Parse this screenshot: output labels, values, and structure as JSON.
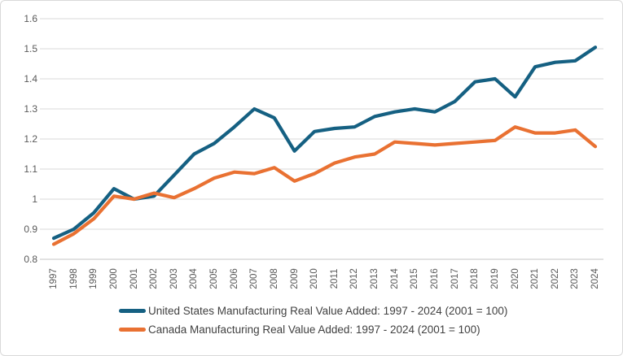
{
  "colors": {
    "background": "#FFFFFF",
    "frame_border": "#D9D9D9",
    "gridline": "#D9D9D9",
    "axis_line": "#C6C6C6",
    "tick_text": "#595959",
    "legend_text": "#404040",
    "us_line": "#156082",
    "canada_line": "#E97132"
  },
  "chart_data": {
    "type": "line",
    "categories": [
      "1997",
      "1998",
      "1999",
      "2000",
      "2001",
      "2002",
      "2003",
      "2004",
      "2005",
      "2006",
      "2007",
      "2008",
      "2009",
      "2010",
      "2011",
      "2012",
      "2013",
      "2014",
      "2015",
      "2016",
      "2017",
      "2018",
      "2019",
      "2020",
      "2021",
      "2022",
      "2023",
      "2024"
    ],
    "series": [
      {
        "name": "United States Manufacturing Real Value Added: 1997 - 2024 (2001 = 100)",
        "color": "#156082",
        "values": [
          0.87,
          0.9,
          0.955,
          1.035,
          1.0,
          1.01,
          1.08,
          1.15,
          1.185,
          1.24,
          1.3,
          1.27,
          1.16,
          1.225,
          1.235,
          1.24,
          1.275,
          1.29,
          1.3,
          1.29,
          1.325,
          1.39,
          1.4,
          1.34,
          1.44,
          1.455,
          1.46,
          1.505
        ]
      },
      {
        "name": "Canada Manufacturing Real Value Added: 1997 - 2024 (2001 = 100)",
        "color": "#E97132",
        "values": [
          0.85,
          0.885,
          0.935,
          1.01,
          1.0,
          1.02,
          1.005,
          1.035,
          1.07,
          1.09,
          1.085,
          1.105,
          1.06,
          1.085,
          1.12,
          1.14,
          1.15,
          1.19,
          1.185,
          1.18,
          1.185,
          1.19,
          1.195,
          1.24,
          1.22,
          1.22,
          1.23,
          1.175
        ]
      }
    ],
    "ylim": [
      0.8,
      1.6
    ],
    "ytick_labels": [
      "0.8",
      "0.9",
      "1",
      "1.1",
      "1.2",
      "1.3",
      "1.4",
      "1.5",
      "1.6"
    ],
    "xlabel": "",
    "ylabel": "",
    "grid": true,
    "legend_position": "bottom-left"
  }
}
